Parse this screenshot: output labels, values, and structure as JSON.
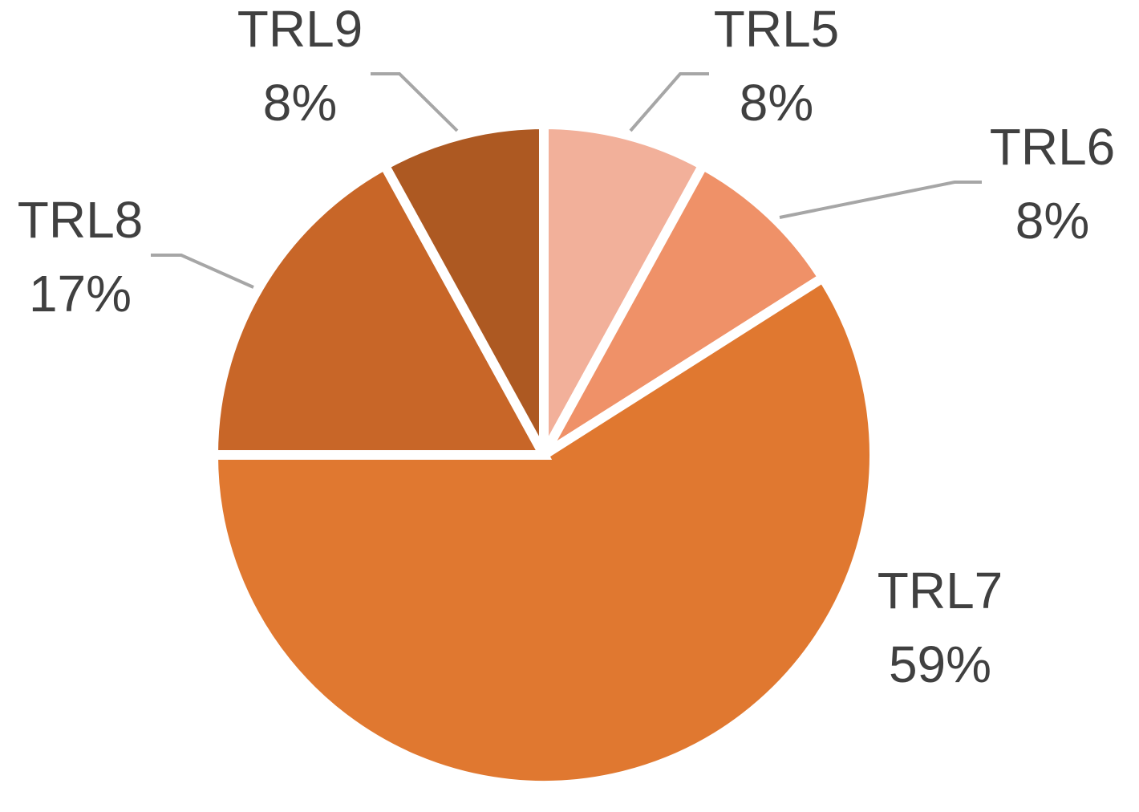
{
  "chart_data": {
    "type": "pie",
    "title": "",
    "slices": [
      {
        "category": "TRL5",
        "value": 8,
        "value_label": "8%",
        "color": "#f2b09a"
      },
      {
        "category": "TRL6",
        "value": 8,
        "value_label": "8%",
        "color": "#ef9168"
      },
      {
        "category": "TRL7",
        "value": 59,
        "value_label": "59%",
        "color": "#e07830"
      },
      {
        "category": "TRL8",
        "value": 17,
        "value_label": "17%",
        "color": "#c86628"
      },
      {
        "category": "TRL9",
        "value": 8,
        "value_label": "8%",
        "color": "#ad5922"
      }
    ],
    "start_angle": "12 o'clock",
    "direction": "clockwise",
    "legend": "none",
    "data_labels": "outside with leader lines",
    "label_color": "#404040",
    "leader_line_color": "#a6a6a6"
  }
}
